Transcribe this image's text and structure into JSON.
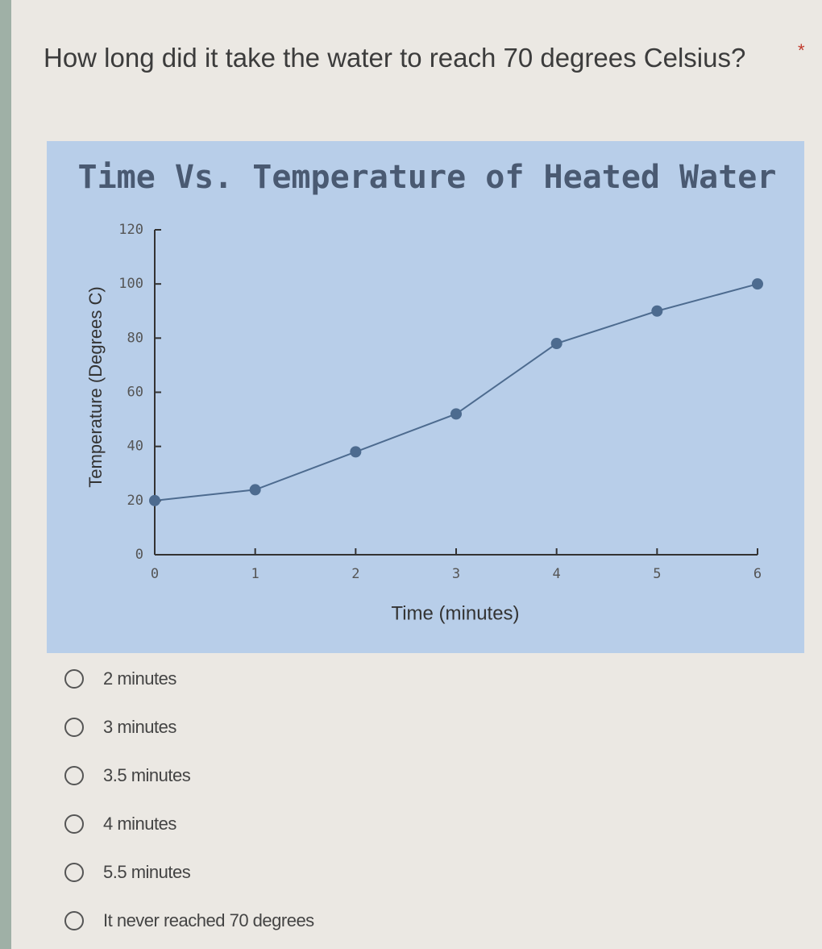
{
  "question": "How long did it take the water to reach 70 degrees Celsius?",
  "required_mark": "*",
  "chart_data": {
    "type": "line",
    "title": "Time Vs. Temperature of Heated Water",
    "x_label": "Time (minutes)",
    "y_label": "Temperature (Degrees C)",
    "x": [
      0,
      1,
      2,
      3,
      4,
      5,
      6
    ],
    "series": [
      {
        "name": "Temperature",
        "color": "#4d6b8f",
        "values": [
          20,
          24,
          38,
          52,
          78,
          90,
          100
        ]
      }
    ],
    "xlim": [
      0,
      6
    ],
    "xticks": [
      0,
      1,
      2,
      3,
      4,
      5,
      6
    ],
    "ylim": [
      0,
      120
    ],
    "yticks": [
      0,
      20,
      40,
      60,
      80,
      100,
      120
    ]
  },
  "options": [
    "2 minutes",
    "3 minutes",
    "3.5 minutes",
    "4 minutes",
    "5.5 minutes",
    "It never reached 70 degrees"
  ]
}
